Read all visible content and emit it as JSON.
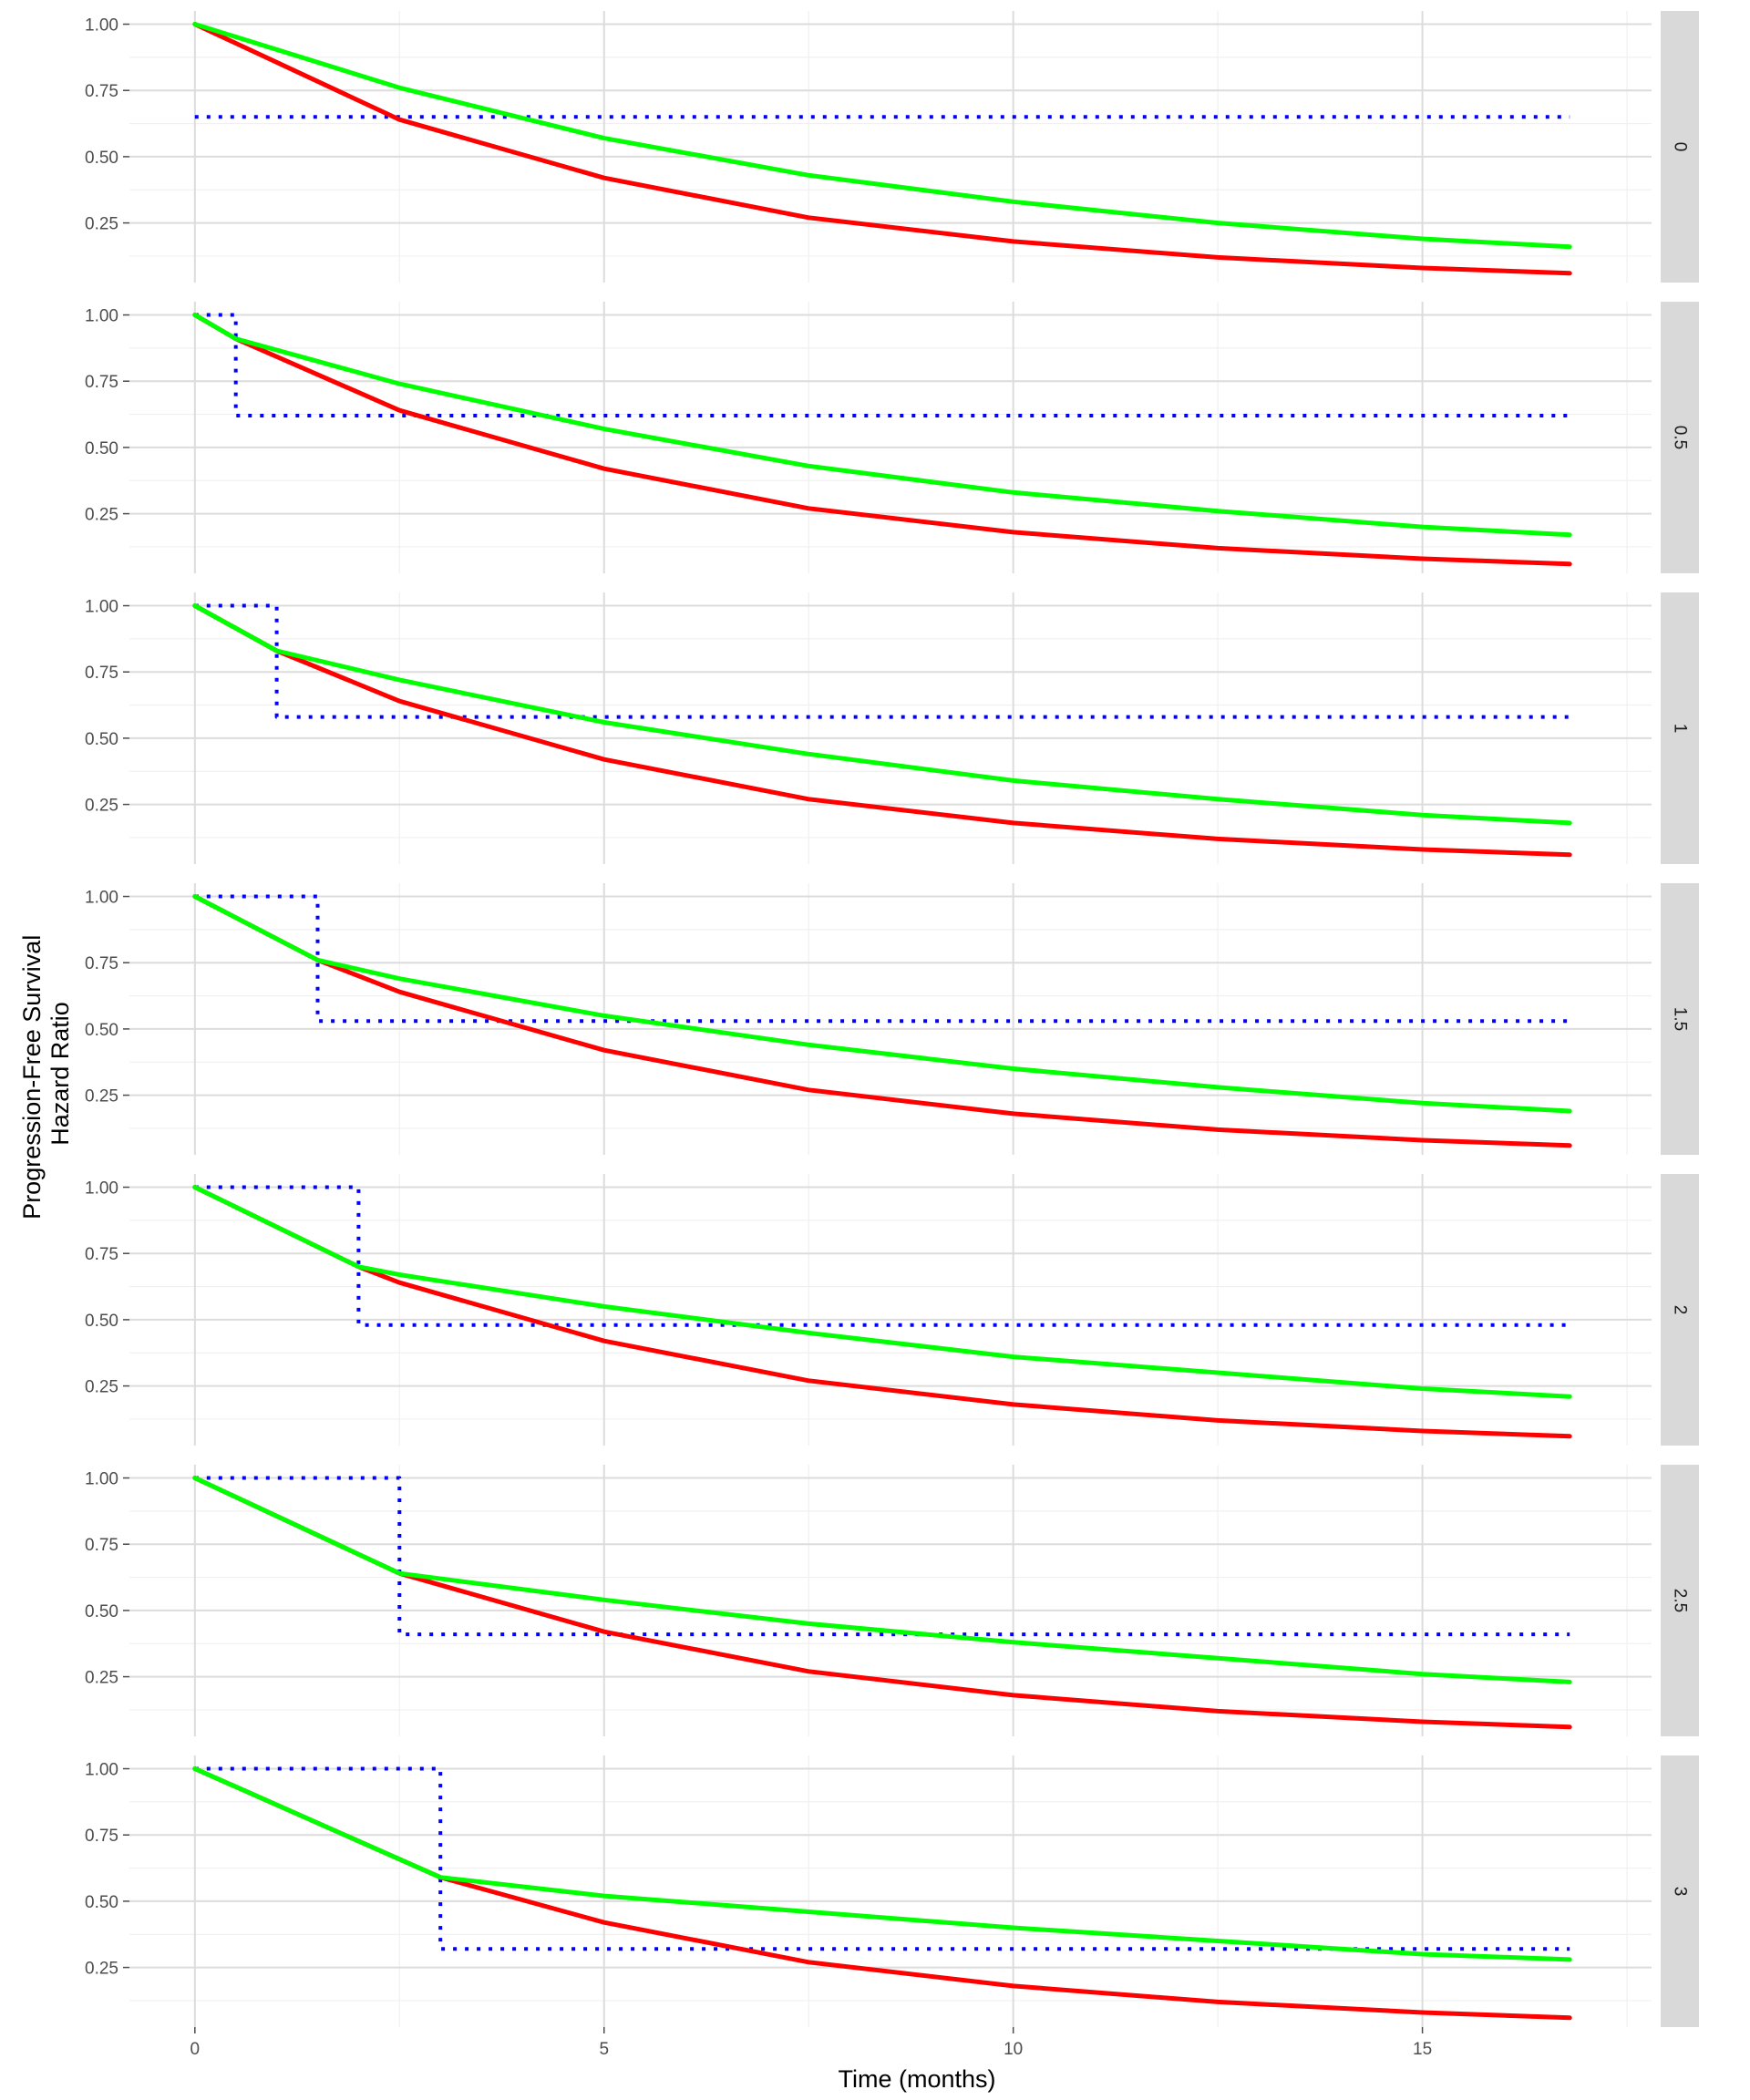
{
  "chart_data": {
    "type": "line",
    "layout": "facet-grid (rows)",
    "title": "",
    "xlabel": "Time (months)",
    "ylabel": [
      "Progression-Free Survival",
      "Hazard Ratio"
    ],
    "xlim": [
      -0.8,
      17.8
    ],
    "ylim": [
      0.025,
      1.05
    ],
    "x_ticks": [
      {
        "value": 0,
        "label": "0"
      },
      {
        "value": 5,
        "label": "5"
      },
      {
        "value": 10,
        "label": "10"
      },
      {
        "value": 15,
        "label": "15"
      }
    ],
    "y_ticks": [
      {
        "value": 1.0,
        "label": "1.00"
      },
      {
        "value": 0.75,
        "label": "0.75"
      },
      {
        "value": 0.5,
        "label": "0.50"
      },
      {
        "value": 0.25,
        "label": "0.25"
      }
    ],
    "grid": true,
    "legend": "none",
    "series_style": [
      {
        "key": "red",
        "color": "#ff0000",
        "line": "solid"
      },
      {
        "key": "green",
        "color": "#00ff00",
        "line": "solid"
      },
      {
        "key": "hr",
        "color": "#0000ff",
        "line": "dotted"
      }
    ],
    "panels": [
      {
        "facet": "0",
        "red": {
          "x": [
            0,
            2.5,
            5,
            7.5,
            10,
            12.5,
            15,
            16.8
          ],
          "y": [
            1.0,
            0.64,
            0.42,
            0.27,
            0.18,
            0.12,
            0.08,
            0.06
          ]
        },
        "green": {
          "x": [
            0,
            2.5,
            5,
            7.5,
            10,
            12.5,
            15,
            16.8
          ],
          "y": [
            1.0,
            0.76,
            0.57,
            0.43,
            0.33,
            0.25,
            0.19,
            0.16
          ]
        },
        "hr": {
          "x": [
            0,
            16.8
          ],
          "y": [
            0.65,
            0.65
          ]
        }
      },
      {
        "facet": "0.5",
        "red": {
          "x": [
            0,
            0.5,
            2.5,
            5,
            7.5,
            10,
            12.5,
            15,
            16.8
          ],
          "y": [
            1.0,
            0.91,
            0.64,
            0.42,
            0.27,
            0.18,
            0.12,
            0.08,
            0.06
          ]
        },
        "green": {
          "x": [
            0,
            0.5,
            2.5,
            5,
            7.5,
            10,
            12.5,
            15,
            16.8
          ],
          "y": [
            1.0,
            0.91,
            0.74,
            0.57,
            0.43,
            0.33,
            0.26,
            0.2,
            0.17
          ]
        },
        "hr": {
          "x": [
            0,
            0.5,
            0.5,
            16.8
          ],
          "y": [
            1.0,
            1.0,
            0.62,
            0.62
          ]
        }
      },
      {
        "facet": "1",
        "red": {
          "x": [
            0,
            1,
            2.5,
            5,
            7.5,
            10,
            12.5,
            15,
            16.8
          ],
          "y": [
            1.0,
            0.83,
            0.64,
            0.42,
            0.27,
            0.18,
            0.12,
            0.08,
            0.06
          ]
        },
        "green": {
          "x": [
            0,
            1,
            2.5,
            5,
            7.5,
            10,
            12.5,
            15,
            16.8
          ],
          "y": [
            1.0,
            0.83,
            0.72,
            0.56,
            0.44,
            0.34,
            0.27,
            0.21,
            0.18
          ]
        },
        "hr": {
          "x": [
            0,
            1,
            1,
            16.8
          ],
          "y": [
            1.0,
            1.0,
            0.58,
            0.58
          ]
        }
      },
      {
        "facet": "1.5",
        "red": {
          "x": [
            0,
            1.5,
            2.5,
            5,
            7.5,
            10,
            12.5,
            15,
            16.8
          ],
          "y": [
            1.0,
            0.76,
            0.64,
            0.42,
            0.27,
            0.18,
            0.12,
            0.08,
            0.06
          ]
        },
        "green": {
          "x": [
            0,
            1.5,
            2.5,
            5,
            7.5,
            10,
            12.5,
            15,
            16.8
          ],
          "y": [
            1.0,
            0.76,
            0.69,
            0.55,
            0.44,
            0.35,
            0.28,
            0.22,
            0.19
          ]
        },
        "hr": {
          "x": [
            0,
            1.5,
            1.5,
            16.8
          ],
          "y": [
            1.0,
            1.0,
            0.53,
            0.53
          ]
        }
      },
      {
        "facet": "2",
        "red": {
          "x": [
            0,
            2,
            2.5,
            5,
            7.5,
            10,
            12.5,
            15,
            16.8
          ],
          "y": [
            1.0,
            0.7,
            0.64,
            0.42,
            0.27,
            0.18,
            0.12,
            0.08,
            0.06
          ]
        },
        "green": {
          "x": [
            0,
            2,
            2.5,
            5,
            7.5,
            10,
            12.5,
            15,
            16.8
          ],
          "y": [
            1.0,
            0.7,
            0.67,
            0.55,
            0.45,
            0.36,
            0.3,
            0.24,
            0.21
          ]
        },
        "hr": {
          "x": [
            0,
            2,
            2,
            16.8
          ],
          "y": [
            1.0,
            1.0,
            0.48,
            0.48
          ]
        }
      },
      {
        "facet": "2.5",
        "red": {
          "x": [
            0,
            2.5,
            5,
            7.5,
            10,
            12.5,
            15,
            16.8
          ],
          "y": [
            1.0,
            0.64,
            0.42,
            0.27,
            0.18,
            0.12,
            0.08,
            0.06
          ]
        },
        "green": {
          "x": [
            0,
            2.5,
            5,
            7.5,
            10,
            12.5,
            15,
            16.8
          ],
          "y": [
            1.0,
            0.64,
            0.54,
            0.45,
            0.38,
            0.32,
            0.26,
            0.23
          ]
        },
        "hr": {
          "x": [
            0,
            2.5,
            2.5,
            16.8
          ],
          "y": [
            1.0,
            1.0,
            0.41,
            0.41
          ]
        }
      },
      {
        "facet": "3",
        "red": {
          "x": [
            0,
            3,
            5,
            7.5,
            10,
            12.5,
            15,
            16.8
          ],
          "y": [
            1.0,
            0.59,
            0.42,
            0.27,
            0.18,
            0.12,
            0.08,
            0.06
          ]
        },
        "green": {
          "x": [
            0,
            3,
            5,
            7.5,
            10,
            12.5,
            15,
            16.8
          ],
          "y": [
            1.0,
            0.59,
            0.52,
            0.46,
            0.4,
            0.35,
            0.3,
            0.28
          ]
        },
        "hr": {
          "x": [
            0,
            3,
            3,
            16.8
          ],
          "y": [
            1.0,
            1.0,
            0.32,
            0.32
          ]
        }
      }
    ]
  }
}
